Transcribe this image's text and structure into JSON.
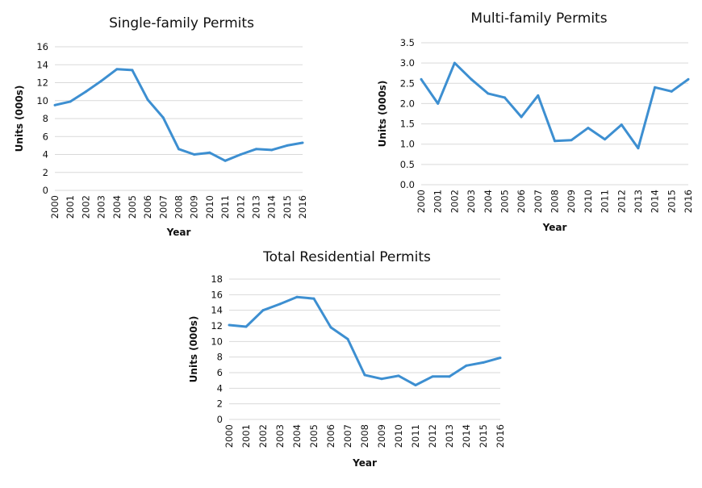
{
  "chart_data": [
    {
      "type": "line",
      "title": "Single-family Permits",
      "xlabel": "Year",
      "ylabel": "Units (000s)",
      "categories": [
        "2000",
        "2001",
        "2002",
        "2003",
        "2004",
        "2005",
        "2006",
        "2007",
        "2008",
        "2009",
        "2010",
        "2011",
        "2012",
        "2013",
        "2014",
        "2015",
        "2016"
      ],
      "values": [
        9.5,
        9.9,
        11.0,
        12.2,
        13.5,
        13.4,
        10.1,
        8.1,
        4.6,
        4.0,
        4.2,
        3.3,
        4.0,
        4.6,
        4.5,
        5.0,
        5.3
      ],
      "ylim": [
        0,
        16
      ],
      "yticks": [
        "0",
        "2",
        "4",
        "6",
        "8",
        "10",
        "12",
        "14",
        "16"
      ],
      "grid": true,
      "color": "#3d8fd1"
    },
    {
      "type": "line",
      "title": "Multi-family Permits",
      "xlabel": "Year",
      "ylabel": "Units (000s)",
      "categories": [
        "2000",
        "2001",
        "2002",
        "2003",
        "2004",
        "2005",
        "2006",
        "2007",
        "2008",
        "2009",
        "2010",
        "2011",
        "2012",
        "2013",
        "2014",
        "2015",
        "2016"
      ],
      "values": [
        2.6,
        2.0,
        3.0,
        2.6,
        2.25,
        2.15,
        1.67,
        2.2,
        1.08,
        1.1,
        1.4,
        1.12,
        1.48,
        0.9,
        2.4,
        2.3,
        2.6
      ],
      "ylim": [
        0,
        3.5
      ],
      "yticks": [
        "0.0",
        "0.5",
        "1.0",
        "1.5",
        "2.0",
        "2.5",
        "3.0",
        "3.5"
      ],
      "grid": true,
      "color": "#3d8fd1"
    },
    {
      "type": "line",
      "title": "Total Residential Permits",
      "xlabel": "Year",
      "ylabel": "Units (000s)",
      "categories": [
        "2000",
        "2001",
        "2002",
        "2003",
        "2004",
        "2005",
        "2006",
        "2007",
        "2008",
        "2009",
        "2010",
        "2011",
        "2012",
        "2013",
        "2014",
        "2015",
        "2016"
      ],
      "values": [
        12.1,
        11.9,
        14.0,
        14.8,
        15.7,
        15.5,
        11.8,
        10.3,
        5.7,
        5.2,
        5.6,
        4.4,
        5.5,
        5.5,
        6.9,
        7.3,
        7.9
      ],
      "ylim": [
        0,
        18
      ],
      "yticks": [
        "0",
        "2",
        "4",
        "6",
        "8",
        "10",
        "12",
        "14",
        "16",
        "18"
      ],
      "grid": true,
      "color": "#3d8fd1"
    }
  ]
}
